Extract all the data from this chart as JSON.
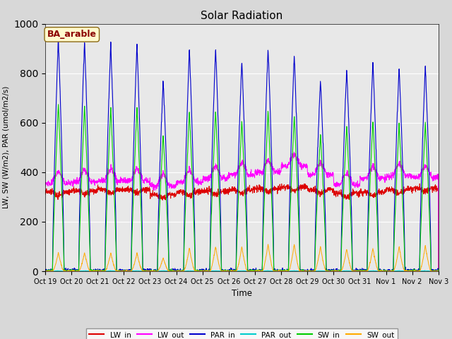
{
  "title": "Solar Radiation",
  "xlabel": "Time",
  "ylabel": "LW, SW (W/m2), PAR (umol/m2/s)",
  "annotation": "BA_arable",
  "ylim": [
    0,
    1000
  ],
  "background_color": "#e8e8e8",
  "series": {
    "LW_in": {
      "color": "#dd0000",
      "label": "LW_in"
    },
    "LW_out": {
      "color": "#ff00ff",
      "label": "LW_out"
    },
    "PAR_in": {
      "color": "#0000cc",
      "label": "PAR_in"
    },
    "PAR_out": {
      "color": "#00cccc",
      "label": "PAR_out"
    },
    "SW_in": {
      "color": "#00cc00",
      "label": "SW_in"
    },
    "SW_out": {
      "color": "#ffaa00",
      "label": "SW_out"
    }
  },
  "xtick_labels": [
    "Oct 19",
    "Oct 20",
    "Oct 21",
    "Oct 22",
    "Oct 23",
    "Oct 24",
    "Oct 25",
    "Oct 26",
    "Oct 27",
    "Oct 28",
    "Oct 29",
    "Oct 30",
    "Oct 31",
    "Nov 1",
    "Nov 2",
    "Nov 3"
  ],
  "num_days": 15,
  "pts_per_day": 144,
  "par_peaks": [
    940,
    930,
    920,
    920,
    770,
    900,
    905,
    850,
    905,
    875,
    775,
    820,
    850,
    830,
    830
  ],
  "sw_ratio": 0.72,
  "sw_out_peaks": [
    75,
    75,
    75,
    75,
    55,
    95,
    100,
    100,
    110,
    110,
    100,
    90,
    95,
    100,
    105
  ],
  "lw_in_base": [
    320,
    325,
    330,
    330,
    310,
    320,
    325,
    330,
    335,
    340,
    330,
    315,
    320,
    330,
    335
  ],
  "lw_out_base": [
    355,
    360,
    365,
    365,
    345,
    360,
    375,
    390,
    400,
    425,
    390,
    350,
    375,
    385,
    380
  ],
  "figsize": [
    6.4,
    4.8
  ],
  "dpi": 100
}
